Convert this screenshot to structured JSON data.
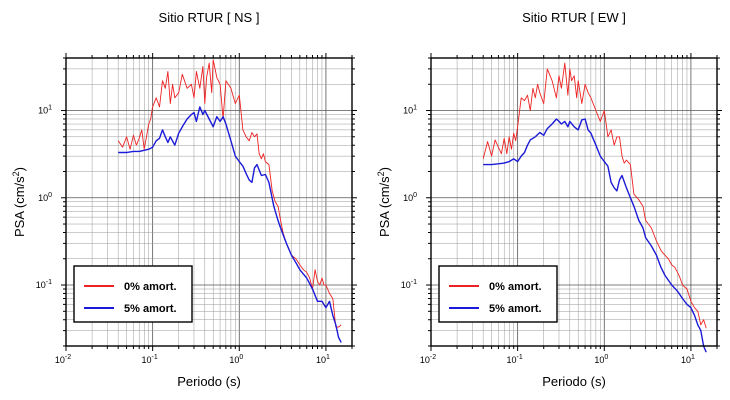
{
  "chart_data": [
    {
      "type": "line",
      "title": "Sitio RTUR [ NS ]",
      "xlabel": "Periodo (s)",
      "ylabel_main": "PSA (cm/s",
      "ylabel_sup": "2",
      "ylabel_close": ")",
      "xscale": "log",
      "yscale": "log",
      "xlim": [
        0.01,
        20
      ],
      "ylim": [
        0.02,
        40
      ],
      "grid": true,
      "legend_position": "bottom-left",
      "x_ticks": [
        {
          "base": "10",
          "exp": "-2"
        },
        {
          "base": "10",
          "exp": "-1"
        },
        {
          "base": "10",
          "exp": "0"
        },
        {
          "base": "10",
          "exp": "1"
        }
      ],
      "y_ticks": [
        {
          "base": "10",
          "exp": "-1"
        },
        {
          "base": "10",
          "exp": "0"
        },
        {
          "base": "10",
          "exp": "1"
        }
      ],
      "series": [
        {
          "name": "0% amort.",
          "color": "#ee2222",
          "x": [
            0.04,
            0.045,
            0.05,
            0.055,
            0.06,
            0.065,
            0.07,
            0.075,
            0.08,
            0.085,
            0.09,
            0.095,
            0.1,
            0.11,
            0.12,
            0.13,
            0.14,
            0.15,
            0.16,
            0.17,
            0.18,
            0.2,
            0.22,
            0.25,
            0.28,
            0.3,
            0.32,
            0.35,
            0.38,
            0.4,
            0.42,
            0.45,
            0.48,
            0.5,
            0.55,
            0.6,
            0.65,
            0.7,
            0.8,
            0.9,
            1.0,
            1.1,
            1.2,
            1.3,
            1.4,
            1.5,
            1.6,
            1.7,
            1.8,
            1.9,
            2.0,
            2.2,
            2.4,
            2.6,
            2.8,
            3.0,
            3.2,
            3.5,
            3.8,
            4.0,
            4.5,
            5.0,
            5.5,
            6.0,
            6.5,
            7.0,
            7.5,
            8.0,
            8.5,
            9.0,
            9.5,
            10,
            11,
            12,
            13,
            14,
            15
          ],
          "y": [
            4.5,
            3.8,
            5.0,
            3.6,
            5.2,
            4.0,
            4.8,
            6.0,
            3.6,
            5.0,
            7.0,
            8.0,
            11,
            14,
            11,
            22,
            18,
            28,
            12,
            20,
            14,
            16,
            26,
            18,
            20,
            14,
            28,
            18,
            32,
            12,
            24,
            35,
            16,
            38,
            24,
            20,
            8,
            22,
            18,
            12,
            15,
            6,
            5,
            4.5,
            5.6,
            5.0,
            5.4,
            3.2,
            2.8,
            3.2,
            2.6,
            2.4,
            1.2,
            0.9,
            0.8,
            0.55,
            0.4,
            0.3,
            0.25,
            0.22,
            0.2,
            0.17,
            0.15,
            0.14,
            0.12,
            0.09,
            0.15,
            0.11,
            0.1,
            0.12,
            0.1,
            0.1,
            0.08,
            0.07,
            0.033,
            0.033,
            0.035
          ]
        },
        {
          "name": "5% amort.",
          "color": "#1a1ad8",
          "x": [
            0.04,
            0.05,
            0.06,
            0.07,
            0.08,
            0.09,
            0.1,
            0.11,
            0.12,
            0.13,
            0.14,
            0.15,
            0.16,
            0.18,
            0.2,
            0.22,
            0.25,
            0.28,
            0.3,
            0.32,
            0.35,
            0.38,
            0.4,
            0.45,
            0.5,
            0.55,
            0.6,
            0.65,
            0.7,
            0.8,
            0.9,
            1.0,
            1.1,
            1.2,
            1.3,
            1.4,
            1.5,
            1.6,
            1.8,
            2.0,
            2.2,
            2.5,
            2.8,
            3.0,
            3.5,
            4.0,
            4.5,
            5.0,
            6.0,
            7.0,
            8.0,
            9.0,
            10,
            11,
            12,
            13,
            14,
            15
          ],
          "y": [
            3.3,
            3.3,
            3.4,
            3.4,
            3.5,
            3.6,
            3.8,
            4.5,
            4.8,
            6.0,
            5.0,
            4.3,
            5.0,
            4.0,
            5.5,
            6.5,
            8.0,
            9.0,
            9.5,
            7.5,
            11,
            9.0,
            10,
            8.0,
            6.5,
            8.5,
            7.5,
            8.5,
            7.0,
            4.5,
            3.0,
            2.6,
            2.3,
            1.9,
            1.6,
            1.5,
            2.2,
            2.4,
            1.8,
            1.85,
            1.5,
            0.8,
            0.55,
            0.45,
            0.3,
            0.22,
            0.18,
            0.15,
            0.12,
            0.09,
            0.065,
            0.065,
            0.055,
            0.065,
            0.045,
            0.035,
            0.025,
            0.022
          ]
        }
      ]
    },
    {
      "type": "line",
      "title": "Sitio RTUR [ EW ]",
      "xlabel": "Periodo (s)",
      "ylabel_main": "PSA (cm/s",
      "ylabel_sup": "2",
      "ylabel_close": ")",
      "xscale": "log",
      "yscale": "log",
      "xlim": [
        0.01,
        20
      ],
      "ylim": [
        0.02,
        40
      ],
      "grid": true,
      "legend_position": "bottom-left",
      "x_ticks": [
        {
          "base": "10",
          "exp": "-2"
        },
        {
          "base": "10",
          "exp": "-1"
        },
        {
          "base": "10",
          "exp": "0"
        },
        {
          "base": "10",
          "exp": "1"
        }
      ],
      "y_ticks": [
        {
          "base": "10",
          "exp": "-1"
        },
        {
          "base": "10",
          "exp": "0"
        },
        {
          "base": "10",
          "exp": "1"
        }
      ],
      "series": [
        {
          "name": "0% amort.",
          "color": "#ee2222",
          "x": [
            0.04,
            0.045,
            0.05,
            0.055,
            0.06,
            0.065,
            0.07,
            0.075,
            0.08,
            0.085,
            0.09,
            0.095,
            0.1,
            0.11,
            0.12,
            0.13,
            0.14,
            0.15,
            0.16,
            0.17,
            0.18,
            0.2,
            0.22,
            0.25,
            0.28,
            0.3,
            0.32,
            0.35,
            0.38,
            0.4,
            0.42,
            0.45,
            0.48,
            0.5,
            0.55,
            0.6,
            0.65,
            0.7,
            0.8,
            0.9,
            1.0,
            1.1,
            1.2,
            1.3,
            1.4,
            1.5,
            1.6,
            1.7,
            1.8,
            2.0,
            2.2,
            2.5,
            2.8,
            3.0,
            3.5,
            4.0,
            4.5,
            5.0,
            5.5,
            6.0,
            6.5,
            7.0,
            7.5,
            8.0,
            9.0,
            10,
            11,
            12,
            13,
            14,
            15
          ],
          "y": [
            2.8,
            4.4,
            3.0,
            4.6,
            3.8,
            3.2,
            4.8,
            3.2,
            5.0,
            3.6,
            5.5,
            4.5,
            6.5,
            14,
            13,
            15,
            10,
            18,
            14,
            20,
            16,
            12,
            30,
            22,
            14,
            25,
            18,
            35,
            15,
            30,
            22,
            25,
            14,
            22,
            12,
            20,
            16,
            14,
            10,
            7.5,
            10,
            5.0,
            6.0,
            4.0,
            5.0,
            5.0,
            3.0,
            2.5,
            2.7,
            2.4,
            1.1,
            0.95,
            0.8,
            0.55,
            0.45,
            0.32,
            0.25,
            0.22,
            0.2,
            0.17,
            0.16,
            0.14,
            0.12,
            0.1,
            0.09,
            0.065,
            0.055,
            0.05,
            0.035,
            0.04,
            0.032
          ]
        },
        {
          "name": "5% amort.",
          "color": "#1a1ad8",
          "x": [
            0.04,
            0.05,
            0.06,
            0.07,
            0.08,
            0.09,
            0.1,
            0.11,
            0.12,
            0.13,
            0.14,
            0.15,
            0.16,
            0.18,
            0.2,
            0.22,
            0.25,
            0.28,
            0.3,
            0.32,
            0.35,
            0.38,
            0.4,
            0.45,
            0.5,
            0.55,
            0.6,
            0.65,
            0.7,
            0.8,
            0.9,
            1.0,
            1.1,
            1.2,
            1.3,
            1.4,
            1.5,
            1.6,
            1.8,
            2.0,
            2.2,
            2.5,
            2.8,
            3.0,
            3.5,
            4.0,
            4.5,
            5.0,
            6.0,
            7.0,
            8.0,
            9.0,
            10,
            11,
            12,
            13,
            14,
            15
          ],
          "y": [
            2.4,
            2.4,
            2.45,
            2.5,
            2.6,
            2.8,
            2.6,
            3.0,
            3.3,
            4.0,
            4.6,
            4.8,
            5.0,
            5.6,
            5.2,
            6.2,
            7.0,
            8.0,
            7.5,
            7.0,
            7.5,
            6.5,
            7.5,
            6.5,
            6.0,
            7.8,
            8.0,
            6.0,
            5.5,
            4.0,
            3.0,
            2.6,
            2.3,
            1.5,
            1.3,
            1.2,
            1.6,
            1.8,
            1.3,
            1.0,
            0.8,
            0.55,
            0.45,
            0.35,
            0.28,
            0.22,
            0.16,
            0.13,
            0.1,
            0.085,
            0.07,
            0.06,
            0.055,
            0.045,
            0.035,
            0.03,
            0.02,
            0.017
          ]
        }
      ]
    }
  ]
}
